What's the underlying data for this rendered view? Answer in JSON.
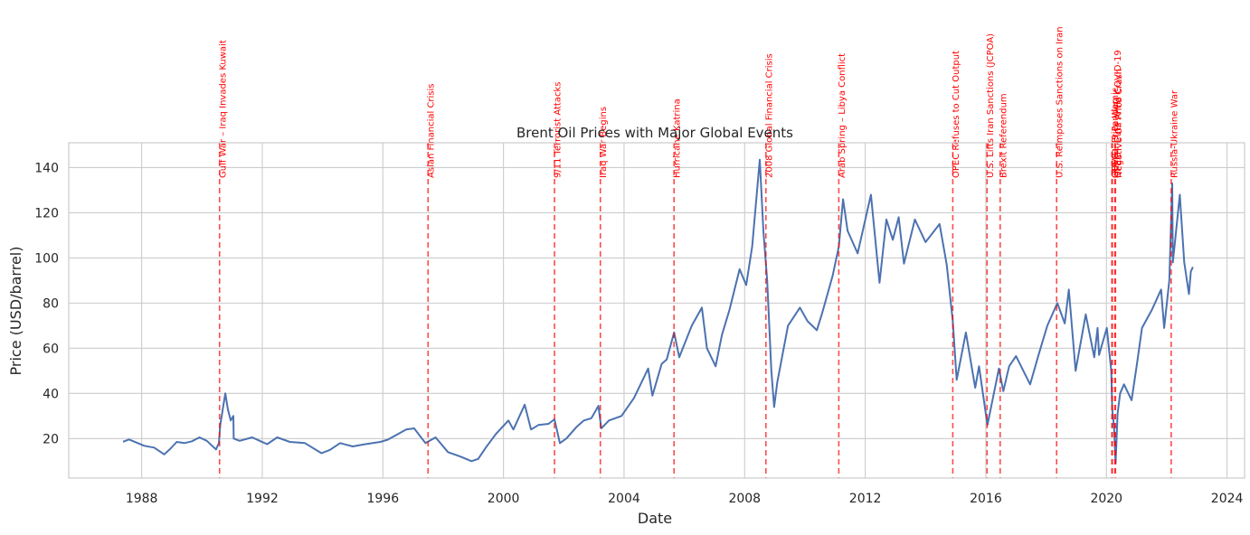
{
  "chart_data": {
    "type": "line",
    "title": "Brent Oil Prices with Major Global Events",
    "xlabel": "Date",
    "ylabel": "Price (USD/barrel)",
    "xlim": [
      "1985-08-01",
      "2024-08-01"
    ],
    "ylim": [
      2.5,
      151
    ],
    "grid": true,
    "x_ticks": [
      "1988",
      "1992",
      "1996",
      "2000",
      "2004",
      "2008",
      "2012",
      "2016",
      "2020",
      "2024"
    ],
    "y_ticks": [
      20,
      40,
      60,
      80,
      100,
      120,
      140
    ],
    "series": [
      {
        "color": "#4c72b0",
        "points": [
          [
            "1987-05-20",
            18.6
          ],
          [
            "1987-08-01",
            19.6
          ],
          [
            "1987-11-01",
            18.2
          ],
          [
            "1988-02-01",
            16.8
          ],
          [
            "1988-06-01",
            16.0
          ],
          [
            "1988-10-01",
            13.0
          ],
          [
            "1988-12-15",
            15.5
          ],
          [
            "1989-03-01",
            18.5
          ],
          [
            "1989-06-01",
            18.0
          ],
          [
            "1989-09-01",
            18.8
          ],
          [
            "1989-12-01",
            20.5
          ],
          [
            "1990-03-01",
            19.0
          ],
          [
            "1990-06-20",
            15.2
          ],
          [
            "1990-07-25",
            18.0
          ],
          [
            "1990-08-10",
            26.0
          ],
          [
            "1990-09-10",
            33.0
          ],
          [
            "1990-10-10",
            40.0
          ],
          [
            "1990-11-10",
            33.0
          ],
          [
            "1990-12-15",
            28.0
          ],
          [
            "1991-01-16",
            30.0
          ],
          [
            "1991-01-20",
            20.0
          ],
          [
            "1991-04-01",
            19.0
          ],
          [
            "1991-09-01",
            20.5
          ],
          [
            "1991-12-01",
            19.0
          ],
          [
            "1992-03-01",
            17.5
          ],
          [
            "1992-07-01",
            20.5
          ],
          [
            "1992-12-01",
            18.5
          ],
          [
            "1993-06-01",
            18.0
          ],
          [
            "1993-12-20",
            13.5
          ],
          [
            "1994-04-01",
            15.0
          ],
          [
            "1994-08-01",
            18.0
          ],
          [
            "1995-01-01",
            16.5
          ],
          [
            "1995-06-01",
            17.5
          ],
          [
            "1995-12-01",
            18.5
          ],
          [
            "1996-03-01",
            19.5
          ],
          [
            "1996-10-10",
            24.0
          ],
          [
            "1997-01-15",
            24.5
          ],
          [
            "1997-06-01",
            18.0
          ],
          [
            "1997-10-01",
            20.5
          ],
          [
            "1998-03-01",
            14.0
          ],
          [
            "1998-08-01",
            12.0
          ],
          [
            "1998-12-10",
            10.0
          ],
          [
            "1999-03-01",
            11.0
          ],
          [
            "1999-06-01",
            16.0
          ],
          [
            "1999-10-01",
            22.0
          ],
          [
            "2000-03-01",
            28.0
          ],
          [
            "2000-05-01",
            24.0
          ],
          [
            "2000-09-15",
            35.0
          ],
          [
            "2000-12-01",
            24.0
          ],
          [
            "2001-03-01",
            26.0
          ],
          [
            "2001-07-01",
            26.5
          ],
          [
            "2001-09-10",
            28.5
          ],
          [
            "2001-11-15",
            18.0
          ],
          [
            "2002-02-01",
            20.0
          ],
          [
            "2002-06-01",
            25.0
          ],
          [
            "2002-09-01",
            28.0
          ],
          [
            "2002-12-01",
            29.0
          ],
          [
            "2003-02-25",
            34.5
          ],
          [
            "2003-04-01",
            24.5
          ],
          [
            "2003-07-01",
            28.0
          ],
          [
            "2003-12-01",
            30.0
          ],
          [
            "2004-05-01",
            38.0
          ],
          [
            "2004-10-20",
            51.0
          ],
          [
            "2004-12-10",
            39.0
          ],
          [
            "2005-04-01",
            53.0
          ],
          [
            "2005-06-01",
            55.0
          ],
          [
            "2005-08-30",
            67.0
          ],
          [
            "2005-11-01",
            56.0
          ],
          [
            "2006-04-01",
            70.0
          ],
          [
            "2006-08-01",
            78.0
          ],
          [
            "2006-10-01",
            60.0
          ],
          [
            "2007-01-15",
            52.0
          ],
          [
            "2007-04-01",
            66.0
          ],
          [
            "2007-07-01",
            77.0
          ],
          [
            "2007-11-01",
            95.0
          ],
          [
            "2008-01-20",
            88.0
          ],
          [
            "2008-04-01",
            105.0
          ],
          [
            "2008-07-03",
            143.5
          ],
          [
            "2008-08-15",
            112.0
          ],
          [
            "2008-10-01",
            90.0
          ],
          [
            "2008-11-20",
            50.0
          ],
          [
            "2008-12-24",
            34.0
          ],
          [
            "2009-02-01",
            45.0
          ],
          [
            "2009-06-10",
            70.0
          ],
          [
            "2009-11-01",
            78.0
          ],
          [
            "2010-02-01",
            72.0
          ],
          [
            "2010-05-25",
            68.0
          ],
          [
            "2010-08-01",
            76.0
          ],
          [
            "2010-12-01",
            92.0
          ],
          [
            "2011-02-15",
            105.0
          ],
          [
            "2011-04-08",
            126.0
          ],
          [
            "2011-06-01",
            112.0
          ],
          [
            "2011-10-01",
            102.0
          ],
          [
            "2012-03-10",
            128.0
          ],
          [
            "2012-06-22",
            89.0
          ],
          [
            "2012-09-14",
            117.0
          ],
          [
            "2012-12-01",
            108.0
          ],
          [
            "2013-02-10",
            118.0
          ],
          [
            "2013-04-15",
            97.5
          ],
          [
            "2013-08-25",
            117.0
          ],
          [
            "2014-01-01",
            107.0
          ],
          [
            "2014-06-20",
            115.0
          ],
          [
            "2014-09-15",
            97.0
          ],
          [
            "2014-11-27",
            72.0
          ],
          [
            "2015-01-13",
            46.0
          ],
          [
            "2015-05-05",
            67.0
          ],
          [
            "2015-08-25",
            42.5
          ],
          [
            "2015-10-10",
            52.0
          ],
          [
            "2016-01-20",
            26.0
          ],
          [
            "2016-06-08",
            51.0
          ],
          [
            "2016-08-01",
            41.0
          ],
          [
            "2016-10-10",
            52.0
          ],
          [
            "2017-01-01",
            56.5
          ],
          [
            "2017-06-21",
            44.0
          ],
          [
            "2017-10-01",
            57.0
          ],
          [
            "2018-01-15",
            70.0
          ],
          [
            "2018-05-17",
            80.0
          ],
          [
            "2018-08-15",
            71.0
          ],
          [
            "2018-10-03",
            86.0
          ],
          [
            "2018-12-24",
            50.0
          ],
          [
            "2019-04-25",
            75.0
          ],
          [
            "2019-08-07",
            56.0
          ],
          [
            "2019-09-16",
            69.0
          ],
          [
            "2019-10-03",
            57.0
          ],
          [
            "2020-01-06",
            69.0
          ],
          [
            "2020-02-28",
            50.0
          ],
          [
            "2020-03-12",
            33.0
          ],
          [
            "2020-04-02",
            25.0
          ],
          [
            "2020-04-21",
            9.0
          ],
          [
            "2020-05-15",
            31.0
          ],
          [
            "2020-06-15",
            40.0
          ],
          [
            "2020-08-01",
            44.0
          ],
          [
            "2020-11-02",
            37.0
          ],
          [
            "2021-01-05",
            53.0
          ],
          [
            "2021-03-08",
            69.0
          ],
          [
            "2021-07-05",
            77.0
          ],
          [
            "2021-10-25",
            86.0
          ],
          [
            "2021-12-01",
            69.0
          ],
          [
            "2022-02-01",
            90.0
          ],
          [
            "2022-03-08",
            133.0
          ],
          [
            "2022-03-16",
            98.0
          ],
          [
            "2022-06-08",
            128.0
          ],
          [
            "2022-08-01",
            98.0
          ],
          [
            "2022-09-27",
            84.0
          ],
          [
            "2022-10-20",
            94.0
          ],
          [
            "2022-11-14",
            96.0
          ]
        ]
      }
    ],
    "annotations": [
      {
        "date": "1990-08-02",
        "label": "Gulf War – Iraq Invades Kuwait"
      },
      {
        "date": "1997-07-02",
        "label": "Asian Financial Crisis"
      },
      {
        "date": "2001-09-11",
        "label": "9/11 Terrorist Attacks"
      },
      {
        "date": "2003-03-20",
        "label": "Iraq War Begins"
      },
      {
        "date": "2005-08-29",
        "label": "Hurricane Katrina"
      },
      {
        "date": "2008-09-15",
        "label": "2008 Global Financial Crisis"
      },
      {
        "date": "2011-02-15",
        "label": "Arab Spring – Libya Conflict"
      },
      {
        "date": "2014-11-27",
        "label": "OPEC Refuses to Cut Output"
      },
      {
        "date": "2016-01-16",
        "label": "U.S. Lifts Iran Sanctions (JCPOA)"
      },
      {
        "date": "2016-06-23",
        "label": "Brexit Referendum"
      },
      {
        "date": "2018-05-08",
        "label": "U.S. Reimposes Sanctions on Iran"
      },
      {
        "date": "2020-03-08",
        "label": "OPEC+ Price War"
      },
      {
        "date": "2020-03-11",
        "label": "COVID-19 Pandemic"
      },
      {
        "date": "2020-04-12",
        "label": "OPEC+ Cuts Amid COVID-19"
      },
      {
        "date": "2020-04-20",
        "label": "Negative Oil Price Crash"
      },
      {
        "date": "2022-02-24",
        "label": "Russia-Ukraine War"
      }
    ],
    "annotation_color": "#ff0000",
    "line_color": "#4c72b0"
  }
}
